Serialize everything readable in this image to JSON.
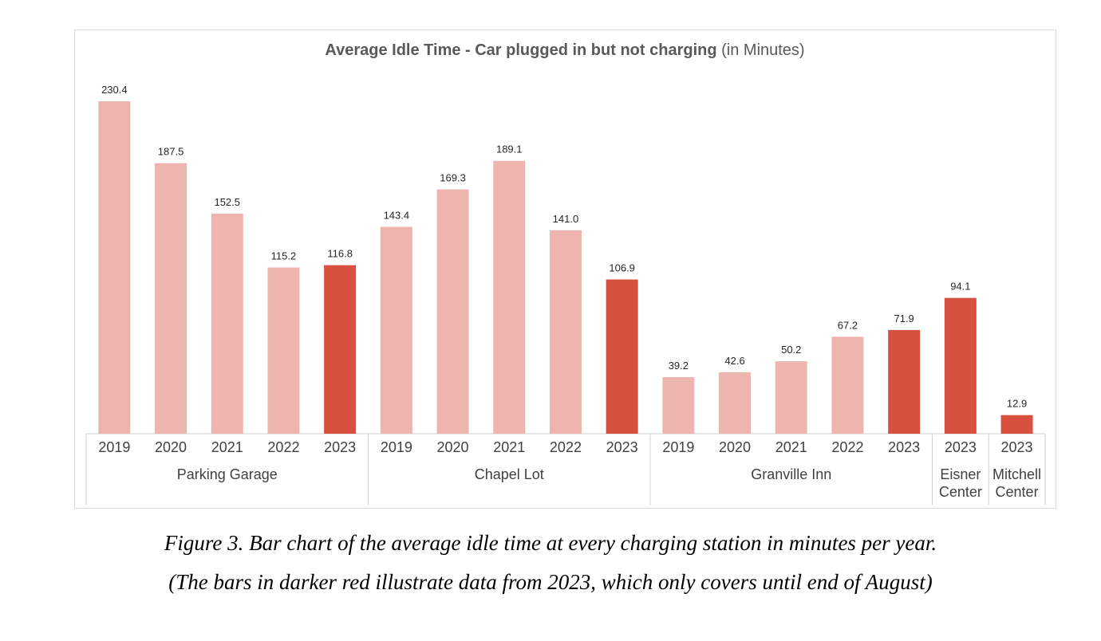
{
  "chart_data": {
    "type": "bar",
    "title": "Average Idle Time - Car plugged in but not charging",
    "title_suffix": " (in Minutes)",
    "xlabel": "",
    "ylabel": "",
    "ylim": [
      0,
      250
    ],
    "grid": false,
    "legend": "none",
    "colors": {
      "past": "#EEB5AF",
      "current": "#D85040"
    },
    "groups": [
      {
        "name": "Parking Garage",
        "bars": [
          {
            "year": "2019",
            "value": 230.4,
            "current": false
          },
          {
            "year": "2020",
            "value": 187.5,
            "current": false
          },
          {
            "year": "2021",
            "value": 152.5,
            "current": false
          },
          {
            "year": "2022",
            "value": 115.2,
            "current": false
          },
          {
            "year": "2023",
            "value": 116.8,
            "current": true
          }
        ]
      },
      {
        "name": "Chapel Lot",
        "bars": [
          {
            "year": "2019",
            "value": 143.4,
            "current": false
          },
          {
            "year": "2020",
            "value": 169.3,
            "current": false
          },
          {
            "year": "2021",
            "value": 189.1,
            "current": false
          },
          {
            "year": "2022",
            "value": 141.0,
            "current": false
          },
          {
            "year": "2023",
            "value": 106.9,
            "current": true
          }
        ]
      },
      {
        "name": "Granville Inn",
        "bars": [
          {
            "year": "2019",
            "value": 39.2,
            "current": false
          },
          {
            "year": "2020",
            "value": 42.6,
            "current": false
          },
          {
            "year": "2021",
            "value": 50.2,
            "current": false
          },
          {
            "year": "2022",
            "value": 67.2,
            "current": false
          },
          {
            "year": "2023",
            "value": 71.9,
            "current": true
          }
        ]
      },
      {
        "name": "Eisner Center",
        "name_lines": [
          "Eisner",
          "Center"
        ],
        "bars": [
          {
            "year": "2023",
            "value": 94.1,
            "current": true
          }
        ]
      },
      {
        "name": "Mitchell Center",
        "name_lines": [
          "Mitchell",
          "Center"
        ],
        "bars": [
          {
            "year": "2023",
            "value": 12.9,
            "current": true
          }
        ]
      }
    ]
  },
  "caption": {
    "line1": "Figure 3. Bar chart of the average idle time at every charging station in minutes per year.",
    "line2": "(The bars in darker red illustrate data from 2023, which only covers until end of August)"
  }
}
